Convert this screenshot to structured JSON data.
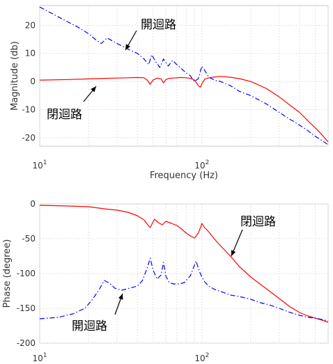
{
  "chart_data": [
    {
      "type": "line",
      "xscale": "log",
      "xlim": [
        10,
        600
      ],
      "ylim": [
        -23,
        27
      ],
      "xticks": [
        {
          "value": 10,
          "base": "10",
          "exp": "1"
        },
        {
          "value": 100,
          "base": "10",
          "exp": "2"
        }
      ],
      "yticks": [
        20,
        10,
        0,
        -10,
        -20
      ],
      "xlabel": "Frequency  (Hz)",
      "ylabel": "Magnitude  (db)",
      "grid": true,
      "series": [
        {
          "color": "#0000ff",
          "style": "dash-dot",
          "x": [
            10,
            13,
            17,
            20,
            22,
            24,
            26,
            30,
            35,
            40,
            44,
            47,
            49,
            52,
            55,
            58,
            62,
            66,
            70,
            75,
            80,
            85,
            90,
            95,
            100,
            104,
            110,
            120,
            130,
            150,
            170,
            200,
            250,
            300,
            350,
            400,
            450,
            500,
            550,
            600
          ],
          "y": [
            26.5,
            23,
            19.5,
            17,
            15,
            13.5,
            15.5,
            13.5,
            11.5,
            10,
            8,
            6,
            9.5,
            7,
            5,
            8,
            5.5,
            7.5,
            6,
            4.5,
            3,
            2,
            0,
            1,
            5.5,
            4,
            1.5,
            0.5,
            0,
            -1.5,
            -3.5,
            -5,
            -8,
            -11,
            -13.5,
            -15.5,
            -17.5,
            -19.5,
            -21,
            -22.5
          ]
        },
        {
          "color": "#ff0000",
          "style": "solid",
          "x": [
            10,
            15,
            20,
            25,
            30,
            35,
            40,
            44,
            46,
            48,
            50,
            53,
            56,
            58,
            60,
            63,
            66,
            70,
            75,
            80,
            85,
            90,
            95,
            98,
            100,
            104,
            110,
            120,
            130,
            150,
            170,
            200,
            250,
            300,
            350,
            400,
            450,
            500,
            550,
            600
          ],
          "y": [
            0.5,
            0.7,
            0.9,
            1.1,
            1.2,
            1.3,
            1.4,
            1.3,
            0.5,
            -1,
            0.5,
            1.2,
            0.9,
            -0.5,
            0.7,
            1.1,
            1.2,
            1.3,
            1.4,
            1.3,
            1.1,
            0.5,
            -1.5,
            -2,
            -0.8,
            0.8,
            1.3,
            1.6,
            1.8,
            1.5,
            1,
            0,
            -2.5,
            -5.5,
            -8.5,
            -11,
            -14,
            -16.5,
            -19,
            -21.5
          ]
        }
      ],
      "annotations": [
        {
          "text": "開迴路",
          "x": 27,
          "y": 14
        },
        {
          "text": "閉迴路",
          "x": 14,
          "y": -9
        }
      ]
    },
    {
      "type": "line",
      "xscale": "log",
      "xlim": [
        10,
        600
      ],
      "ylim": [
        -200,
        0
      ],
      "xticks": [
        {
          "value": 10,
          "base": "10",
          "exp": "1"
        },
        {
          "value": 100,
          "base": "10",
          "exp": "2"
        }
      ],
      "yticks": [
        0,
        -50,
        -100,
        -150,
        -200
      ],
      "xlabel": "",
      "ylabel": "Phase  (degree)",
      "grid": true,
      "series": [
        {
          "color": "#ff0000",
          "style": "solid",
          "x": [
            10,
            15,
            20,
            25,
            30,
            35,
            40,
            44,
            46,
            48,
            51,
            54,
            57,
            60,
            65,
            70,
            75,
            80,
            85,
            90,
            95,
            98,
            100,
            103,
            110,
            120,
            130,
            150,
            170,
            200,
            250,
            300,
            350,
            400,
            450,
            500,
            550,
            600
          ],
          "y": [
            -2,
            -3,
            -4,
            -7,
            -9,
            -12,
            -17,
            -23,
            -29,
            -34,
            -22,
            -27,
            -30,
            -25,
            -28,
            -31,
            -36,
            -42,
            -46,
            -49,
            -42,
            -34,
            -28,
            -33,
            -40,
            -51,
            -60,
            -75,
            -90,
            -105,
            -122,
            -136,
            -148,
            -156,
            -161,
            -164,
            -167,
            -170
          ]
        },
        {
          "color": "#0000ff",
          "style": "dash-dot",
          "x": [
            10,
            13,
            16,
            19,
            21,
            23,
            25,
            27,
            29,
            32,
            36,
            40,
            43,
            46,
            48,
            50,
            53,
            56,
            58,
            60,
            63,
            67,
            72,
            78,
            85,
            92,
            97,
            100,
            104,
            110,
            120,
            135,
            150,
            170,
            200,
            230,
            260,
            300,
            350,
            400,
            450,
            500,
            600
          ],
          "y": [
            -165,
            -163,
            -158,
            -150,
            -138,
            -125,
            -110,
            -114,
            -121,
            -124,
            -121,
            -118,
            -110,
            -92,
            -78,
            -95,
            -108,
            -102,
            -84,
            -104,
            -113,
            -115,
            -115,
            -113,
            -103,
            -82,
            -98,
            -105,
            -112,
            -118,
            -123,
            -127,
            -131,
            -133,
            -137,
            -142,
            -145,
            -150,
            -156,
            -160,
            -163,
            -164,
            -168
          ]
        }
      ],
      "annotations": [
        {
          "text": "閉迴路",
          "x": 150,
          "y": -70
        },
        {
          "text": "開迴路",
          "x": 22,
          "y": -160
        }
      ]
    }
  ]
}
